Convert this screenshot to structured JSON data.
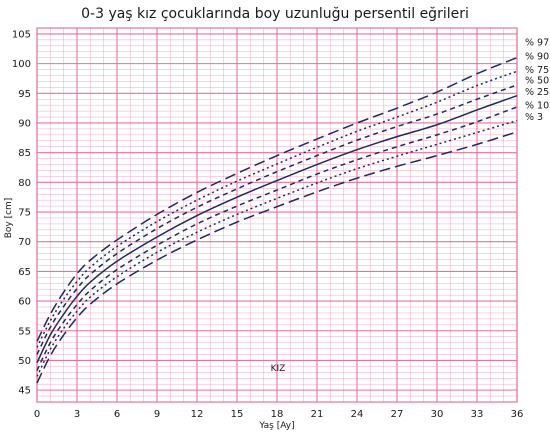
{
  "chart_data": {
    "type": "line",
    "title": "0-3 yaş kız çocuklarında boy uzunluğu persentil eğrileri",
    "xlabel": "Yaş [Ay]",
    "ylabel": "Boy [cm]",
    "annotation": "KIZ",
    "xlim": [
      0,
      36
    ],
    "ylim": [
      43,
      106
    ],
    "xticks": [
      0,
      3,
      6,
      9,
      12,
      15,
      18,
      21,
      24,
      27,
      30,
      33,
      36
    ],
    "yticks": [
      45,
      50,
      55,
      60,
      65,
      70,
      75,
      80,
      85,
      90,
      95,
      100,
      105
    ],
    "grid": true,
    "grid_color": "#e8739f",
    "line_color": "#1f2a5c",
    "x": [
      0,
      1,
      2,
      3,
      4,
      6,
      9,
      12,
      15,
      18,
      21,
      24,
      27,
      30,
      33,
      36
    ],
    "series": [
      {
        "name": "% 97",
        "dash": "long-dash",
        "values": [
          53.2,
          57.8,
          61.5,
          64.6,
          66.9,
          70.3,
          74.6,
          78.3,
          81.5,
          84.5,
          87.3,
          90.0,
          92.5,
          95.2,
          98.3,
          101.0
        ]
      },
      {
        "name": "% 90",
        "dash": "dot",
        "values": [
          52.2,
          56.7,
          60.3,
          63.3,
          65.7,
          69.2,
          73.4,
          77.0,
          80.2,
          83.1,
          85.9,
          88.6,
          91.0,
          93.5,
          96.3,
          98.7
        ]
      },
      {
        "name": "% 75",
        "dash": "short-dash",
        "values": [
          51.0,
          55.6,
          59.1,
          62.1,
          64.5,
          68.0,
          72.2,
          75.8,
          78.9,
          81.8,
          84.5,
          87.1,
          89.4,
          91.5,
          94.0,
          96.4
        ]
      },
      {
        "name": "% 50",
        "dash": "solid",
        "values": [
          49.6,
          54.3,
          57.8,
          60.8,
          63.2,
          66.7,
          70.8,
          74.4,
          77.5,
          80.3,
          83.0,
          85.5,
          87.7,
          89.7,
          92.2,
          94.6
        ]
      },
      {
        "name": "% 25",
        "dash": "short-dash",
        "values": [
          48.3,
          53.0,
          56.5,
          59.4,
          61.8,
          65.3,
          69.4,
          73.0,
          76.0,
          78.7,
          81.4,
          83.8,
          86.0,
          88.0,
          90.2,
          92.7
        ]
      },
      {
        "name": "% 10",
        "dash": "dot",
        "values": [
          47.3,
          51.9,
          55.4,
          58.3,
          60.7,
          64.1,
          68.2,
          71.6,
          74.6,
          77.3,
          79.9,
          82.3,
          84.4,
          86.4,
          88.4,
          90.4
        ]
      },
      {
        "name": "% 3",
        "dash": "long-dash",
        "values": [
          46.2,
          50.8,
          54.3,
          57.2,
          59.5,
          62.9,
          66.9,
          70.3,
          73.3,
          75.9,
          78.4,
          80.7,
          82.7,
          84.5,
          86.4,
          88.5
        ]
      }
    ]
  }
}
